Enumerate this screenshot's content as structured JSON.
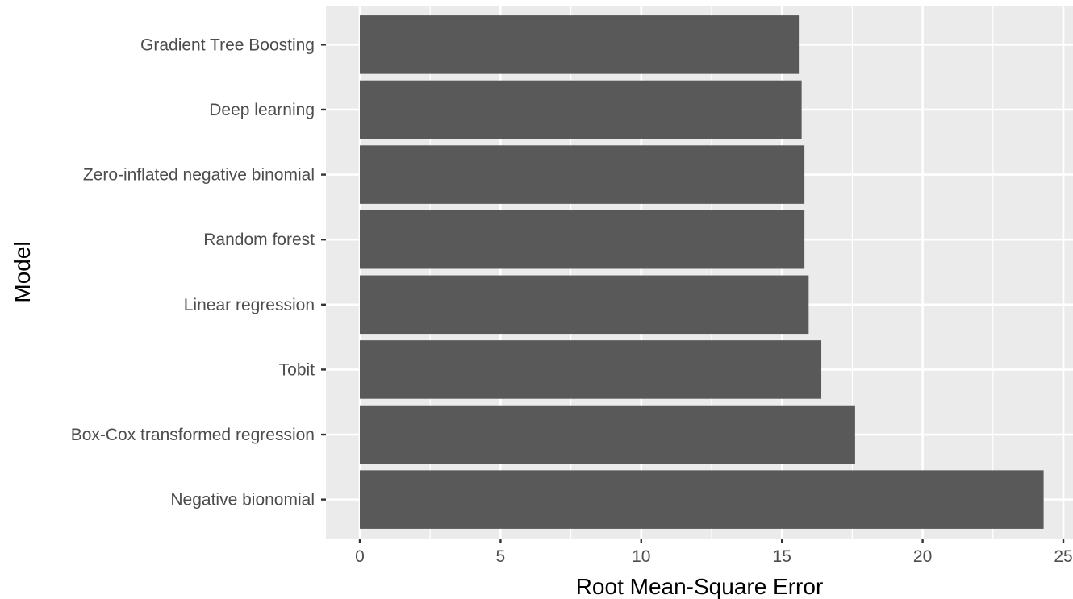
{
  "chart_data": {
    "type": "bar",
    "orientation": "horizontal",
    "categories": [
      "Gradient Tree Boosting",
      "Deep learning",
      "Zero-inflated negative binomial",
      "Random forest",
      "Linear regression",
      "Tobit",
      "Box-Cox transformed regression",
      "Negative bionomial"
    ],
    "values": [
      15.6,
      15.7,
      15.8,
      15.8,
      15.95,
      16.4,
      17.6,
      24.3
    ],
    "xlabel": "Root Mean-Square Error",
    "ylabel": "Model",
    "xlim": [
      0,
      25
    ],
    "xticks": [
      "0",
      "5",
      "10",
      "15",
      "20",
      "25"
    ],
    "grid": true,
    "legend": "none",
    "colors": {
      "bar": "#595959",
      "panel": "#ebebeb",
      "grid_major": "#ffffff",
      "tick_label": "#4d4d4d",
      "axis_title": "#000000"
    }
  }
}
